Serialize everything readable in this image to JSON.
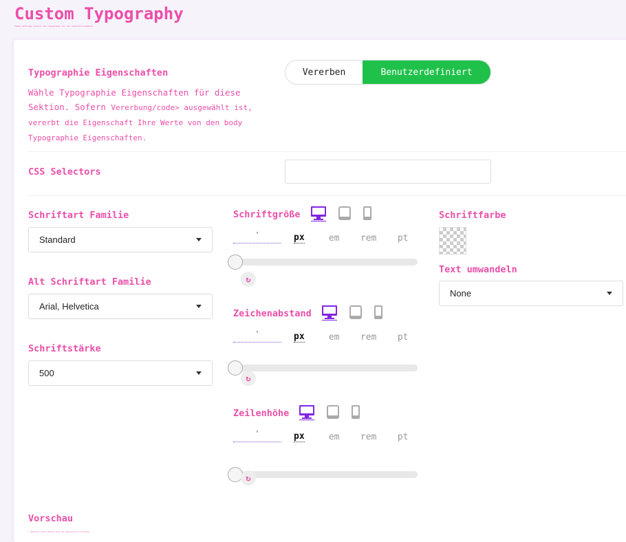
{
  "header": {
    "title": "Custom Typography",
    "subtitle": "These settings control the typography for all selected elements."
  },
  "props": {
    "label": "Typographie Eigenschaften",
    "desc_1": "Wähle Typographie Eigenschaften für diese Sektion. Sofern ",
    "desc_code": "Vererbung/code> ausgewählt ist, vererbt die Eigenschaft Ihre Werte von den body Typographie Eigenschaften.",
    "toggle": [
      "Vererben",
      "Benutzerdefiniert"
    ],
    "active": "Benutzerdefiniert"
  },
  "css": {
    "label": "CSS Selectors",
    "value": ""
  },
  "family": {
    "label": "Schriftart Familie",
    "value": "Standard"
  },
  "alt_family": {
    "label": "Alt Schriftart Familie",
    "value": "Arial, Helvetica"
  },
  "weight": {
    "label": "Schriftstärke",
    "value": "500"
  },
  "units": [
    "px",
    "em",
    "rem",
    "pt"
  ],
  "sliders": [
    {
      "label": "Schriftgröße",
      "value": "'",
      "unit": "px",
      "level": 0
    },
    {
      "label": "Zeichenabstand",
      "value": "'",
      "unit": "px",
      "level": 0
    },
    {
      "label": "Zeilenhöhe",
      "value": "'",
      "unit": "px",
      "level": 0
    }
  ],
  "color": {
    "label": "Schriftfarbe",
    "value": "transparent"
  },
  "transform": {
    "label": "Text umwandeln",
    "value": "None"
  },
  "preview": {
    "label": "Vorschau",
    "note": "* Default font family will be applied in frontend."
  },
  "colors": {
    "accent": "#ea4fa9",
    "active_device": "#8224e3",
    "toggle_active": "#1fc14a"
  }
}
